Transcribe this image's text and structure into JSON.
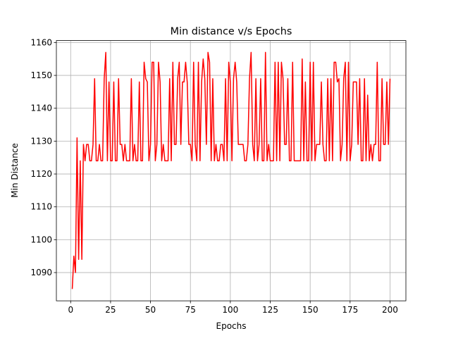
{
  "chart_data": {
    "type": "line",
    "title": "Min distance v/s Epochs",
    "x_label": "Epochs",
    "y_label": "Min Distance",
    "x": [
      1,
      2,
      3,
      4,
      5,
      6,
      7,
      8,
      9,
      10,
      11,
      12,
      13,
      14,
      15,
      16,
      17,
      18,
      19,
      20,
      21,
      22,
      23,
      24,
      25,
      26,
      27,
      28,
      29,
      30,
      31,
      32,
      33,
      34,
      35,
      36,
      37,
      38,
      39,
      40,
      41,
      42,
      43,
      44,
      45,
      46,
      47,
      48,
      49,
      50,
      51,
      52,
      53,
      54,
      55,
      56,
      57,
      58,
      59,
      60,
      61,
      62,
      63,
      64,
      65,
      66,
      67,
      68,
      69,
      70,
      71,
      72,
      73,
      74,
      75,
      76,
      77,
      78,
      79,
      80,
      81,
      82,
      83,
      84,
      85,
      86,
      87,
      88,
      89,
      90,
      91,
      92,
      93,
      94,
      95,
      96,
      97,
      98,
      99,
      100,
      101,
      102,
      103,
      104,
      105,
      106,
      107,
      108,
      109,
      110,
      111,
      112,
      113,
      114,
      115,
      116,
      117,
      118,
      119,
      120,
      121,
      122,
      123,
      124,
      125,
      126,
      127,
      128,
      129,
      130,
      131,
      132,
      133,
      134,
      135,
      136,
      137,
      138,
      139,
      140,
      141,
      142,
      143,
      144,
      145,
      146,
      147,
      148,
      149,
      150,
      151,
      152,
      153,
      154,
      155,
      156,
      157,
      158,
      159,
      160,
      161,
      162,
      163,
      164,
      165,
      166,
      167,
      168,
      169,
      170,
      171,
      172,
      173,
      174,
      175,
      176,
      177,
      178,
      179,
      180,
      181,
      182,
      183,
      184,
      185,
      186,
      187,
      188,
      189,
      190,
      191,
      192,
      193,
      194,
      195,
      196,
      197,
      198,
      199,
      200
    ],
    "series": [
      {
        "name": "Min distance",
        "color": "#ff0000",
        "values": [
          1085,
          1095,
          1090,
          1131,
          1094,
          1124,
          1094,
          1129,
          1124,
          1129,
          1129,
          1124,
          1124,
          1129,
          1149,
          1124,
          1124,
          1129,
          1124,
          1124,
          1149,
          1157,
          1124,
          1148,
          1124,
          1124,
          1148,
          1124,
          1124,
          1149,
          1129,
          1129,
          1124,
          1129,
          1124,
          1124,
          1124,
          1149,
          1124,
          1129,
          1124,
          1124,
          1148,
          1124,
          1124,
          1154,
          1149,
          1148,
          1124,
          1129,
          1154,
          1154,
          1124,
          1129,
          1154,
          1148,
          1124,
          1129,
          1124,
          1124,
          1124,
          1149,
          1124,
          1154,
          1129,
          1129,
          1149,
          1154,
          1129,
          1148,
          1148,
          1154,
          1148,
          1129,
          1129,
          1124,
          1154,
          1129,
          1124,
          1154,
          1124,
          1148,
          1155,
          1149,
          1129,
          1157,
          1154,
          1124,
          1149,
          1124,
          1129,
          1124,
          1124,
          1129,
          1129,
          1124,
          1149,
          1124,
          1154,
          1148,
          1124,
          1149,
          1154,
          1148,
          1129,
          1129,
          1129,
          1129,
          1124,
          1124,
          1129,
          1149,
          1157,
          1129,
          1124,
          1149,
          1124,
          1129,
          1149,
          1124,
          1124,
          1157,
          1124,
          1129,
          1124,
          1124,
          1124,
          1154,
          1124,
          1154,
          1124,
          1154,
          1149,
          1129,
          1129,
          1149,
          1124,
          1124,
          1154,
          1124,
          1124,
          1124,
          1124,
          1124,
          1155,
          1124,
          1148,
          1124,
          1124,
          1154,
          1124,
          1154,
          1124,
          1129,
          1129,
          1129,
          1148,
          1129,
          1124,
          1124,
          1149,
          1124,
          1149,
          1124,
          1154,
          1154,
          1148,
          1149,
          1124,
          1129,
          1149,
          1154,
          1124,
          1154,
          1124,
          1129,
          1148,
          1148,
          1148,
          1129,
          1149,
          1124,
          1124,
          1149,
          1124,
          1144,
          1124,
          1129,
          1124,
          1129,
          1129,
          1154,
          1124,
          1124,
          1149,
          1129,
          1129,
          1148,
          1129,
          1149
        ]
      }
    ],
    "xlim": [
      -8.95,
      209.95
    ],
    "xticks": [
      0,
      25,
      50,
      75,
      100,
      125,
      150,
      175,
      200
    ],
    "ylim": [
      1081.4,
      1160.6
    ],
    "yticks": [
      1090,
      1100,
      1110,
      1120,
      1130,
      1140,
      1150,
      1160
    ],
    "grid": true
  }
}
